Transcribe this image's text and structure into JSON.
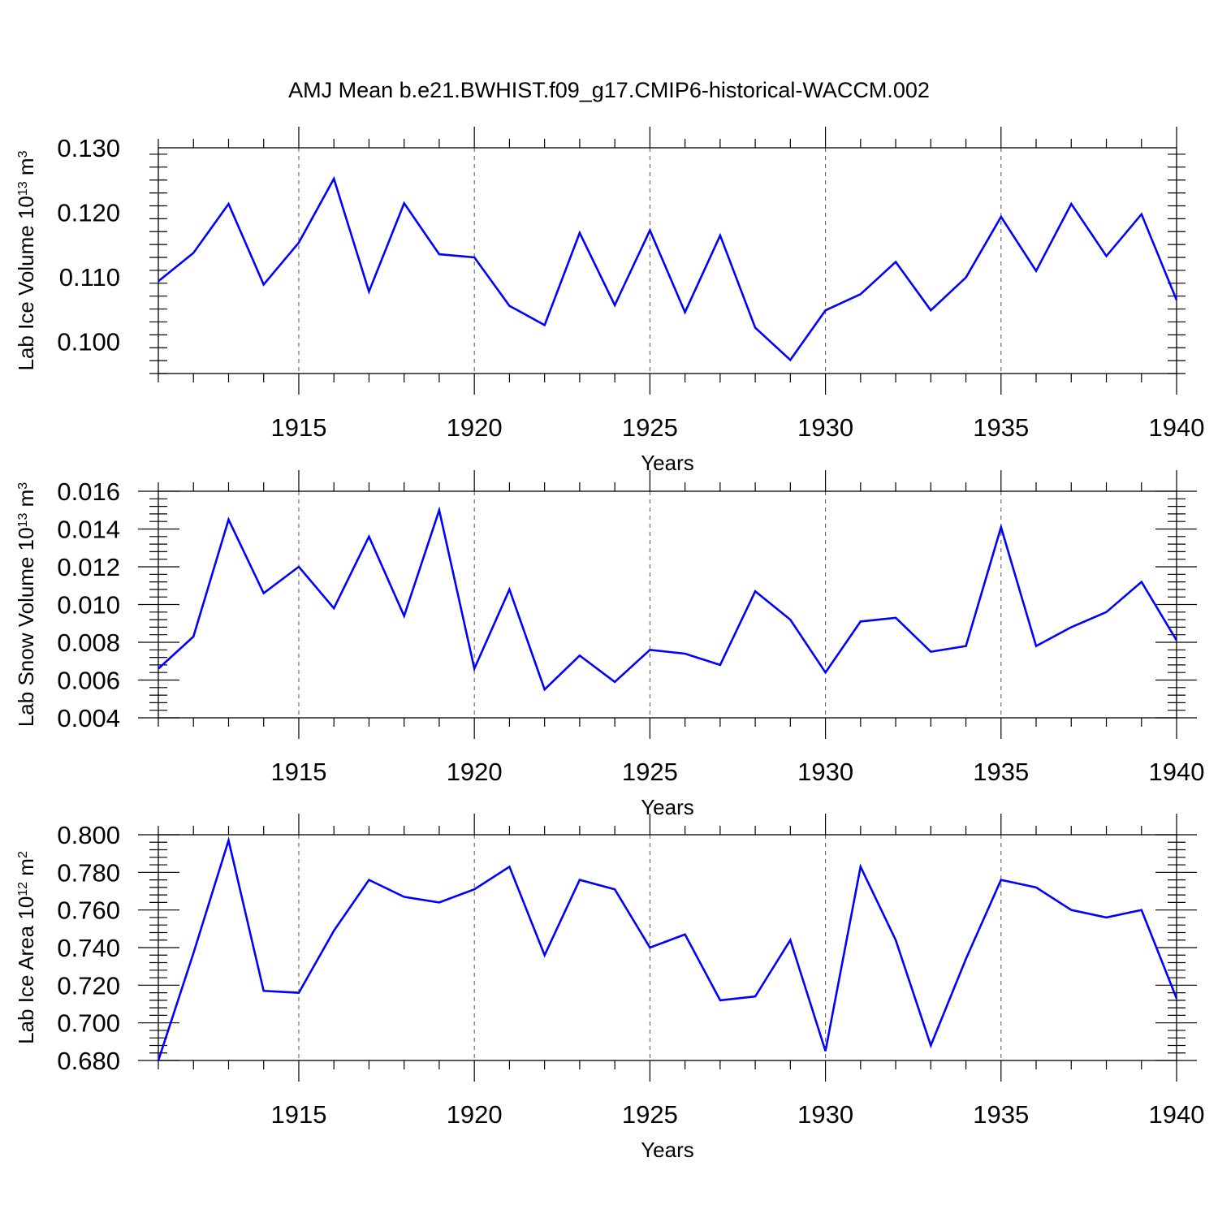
{
  "title": "AMJ Mean b.e21.BWHIST.f09_g17.CMIP6-historical-WACCM.002",
  "colors": {
    "line": "#0000ff",
    "axis": "#000000",
    "grid": "#555555"
  },
  "chart_data": [
    {
      "type": "line",
      "title": "AMJ Mean b.e21.BWHIST.f09_g17.CMIP6-historical-WACCM.002",
      "xlabel": "Years",
      "ylabel": "Lab Ice Volume",
      "ylabel_unit_base": "10",
      "ylabel_unit_exp": "13",
      "ylabel_unit": "m",
      "ylabel_unit_pow": "3",
      "xlim": [
        1911,
        1940
      ],
      "ylim": [
        0.095,
        0.13
      ],
      "xticks": [
        1915,
        1920,
        1925,
        1930,
        1935,
        1940
      ],
      "xtick_labels": [
        "1915",
        "1920",
        "1925",
        "1930",
        "1935",
        "1940"
      ],
      "yticks": [
        0.1,
        0.11,
        0.12,
        0.13
      ],
      "ytick_labels": [
        "0.100",
        "0.110",
        "0.120",
        "0.130"
      ],
      "x": [
        1911,
        1912,
        1913,
        1914,
        1915,
        1916,
        1917,
        1918,
        1919,
        1920,
        1921,
        1922,
        1923,
        1924,
        1925,
        1926,
        1927,
        1928,
        1929,
        1930,
        1931,
        1932,
        1933,
        1934,
        1935,
        1936,
        1937,
        1938,
        1939,
        1940
      ],
      "values": [
        0.1093,
        0.1137,
        0.1213,
        0.1088,
        0.1153,
        0.1252,
        0.1077,
        0.1214,
        0.1135,
        0.113,
        0.1055,
        0.1025,
        0.1168,
        0.1056,
        0.1172,
        0.1045,
        0.1164,
        0.1021,
        0.0971,
        0.1048,
        0.1073,
        0.1123,
        0.1048,
        0.1099,
        0.1193,
        0.1109,
        0.1213,
        0.1132,
        0.1197,
        0.1064
      ]
    },
    {
      "type": "line",
      "xlabel": "Years",
      "ylabel": "Lab Snow Volume",
      "ylabel_unit_base": "10",
      "ylabel_unit_exp": "13",
      "ylabel_unit": "m",
      "ylabel_unit_pow": "3",
      "xlim": [
        1911,
        1940
      ],
      "ylim": [
        0.004,
        0.016
      ],
      "xticks": [
        1915,
        1920,
        1925,
        1930,
        1935,
        1940
      ],
      "xtick_labels": [
        "1915",
        "1920",
        "1925",
        "1930",
        "1935",
        "1940"
      ],
      "yticks": [
        0.004,
        0.006,
        0.008,
        0.01,
        0.012,
        0.014,
        0.016
      ],
      "ytick_labels": [
        "0.004",
        "0.006",
        "0.008",
        "0.010",
        "0.012",
        "0.014",
        "0.016"
      ],
      "x": [
        1911,
        1912,
        1913,
        1914,
        1915,
        1916,
        1917,
        1918,
        1919,
        1920,
        1921,
        1922,
        1923,
        1924,
        1925,
        1926,
        1927,
        1928,
        1929,
        1930,
        1931,
        1932,
        1933,
        1934,
        1935,
        1936,
        1937,
        1938,
        1939,
        1940
      ],
      "values": [
        0.0066,
        0.0083,
        0.0145,
        0.0106,
        0.012,
        0.0098,
        0.0136,
        0.0094,
        0.015,
        0.0066,
        0.0108,
        0.0055,
        0.0073,
        0.0059,
        0.0076,
        0.0074,
        0.0068,
        0.0107,
        0.0092,
        0.0064,
        0.0091,
        0.0093,
        0.0075,
        0.0078,
        0.0141,
        0.0078,
        0.0088,
        0.0096,
        0.0112,
        0.0081
      ]
    },
    {
      "type": "line",
      "xlabel": "Years",
      "ylabel": "Lab Ice Area",
      "ylabel_unit_base": "10",
      "ylabel_unit_exp": "12",
      "ylabel_unit": "m",
      "ylabel_unit_pow": "2",
      "xlim": [
        1911,
        1940
      ],
      "ylim": [
        0.68,
        0.8
      ],
      "xticks": [
        1915,
        1920,
        1925,
        1930,
        1935,
        1940
      ],
      "xtick_labels": [
        "1915",
        "1920",
        "1925",
        "1930",
        "1935",
        "1940"
      ],
      "yticks": [
        0.68,
        0.7,
        0.72,
        0.74,
        0.76,
        0.78,
        0.8
      ],
      "ytick_labels": [
        "0.680",
        "0.700",
        "0.720",
        "0.740",
        "0.760",
        "0.780",
        "0.800"
      ],
      "x": [
        1911,
        1912,
        1913,
        1914,
        1915,
        1916,
        1917,
        1918,
        1919,
        1920,
        1921,
        1922,
        1923,
        1924,
        1925,
        1926,
        1927,
        1928,
        1929,
        1930,
        1931,
        1932,
        1933,
        1934,
        1935,
        1936,
        1937,
        1938,
        1939,
        1940
      ],
      "values": [
        0.68,
        0.737,
        0.797,
        0.717,
        0.716,
        0.749,
        0.776,
        0.767,
        0.764,
        0.771,
        0.783,
        0.736,
        0.776,
        0.771,
        0.74,
        0.747,
        0.712,
        0.714,
        0.744,
        0.685,
        0.783,
        0.744,
        0.688,
        0.734,
        0.776,
        0.772,
        0.76,
        0.756,
        0.76,
        0.713
      ]
    }
  ]
}
